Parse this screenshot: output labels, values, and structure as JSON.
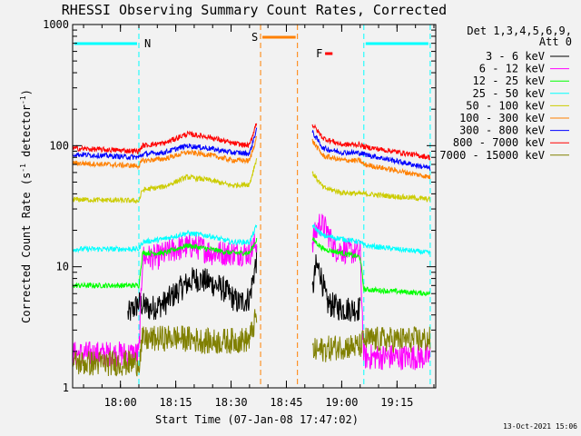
{
  "chart_data": {
    "type": "line",
    "title": "RHESSI Observing Summary Count Rates, Corrected",
    "xlabel": "Start Time (07-Jan-08 17:47:02)",
    "ylabel_main": "Corrected Count Rate (s",
    "ylabel_sup1": "-1",
    "ylabel_mid": " detector",
    "ylabel_sup2": "-1",
    "ylabel_end": ")",
    "y_scale": "log",
    "ylim": [
      1,
      1000
    ],
    "xlim": [
      "17:47:02",
      "19:25:30"
    ],
    "x_ticks": [
      "18:00",
      "18:15",
      "18:30",
      "18:45",
      "19:00",
      "19:15"
    ],
    "y_ticks": [
      "1",
      "10",
      "100",
      "1000"
    ],
    "date_stamp": "13-Oct-2021 15:06",
    "legend_header_1": "Det 1,3,4,5,6,9,",
    "legend_header_2": "Att 0",
    "legend_position": "top-right",
    "gaps": [
      [
        "18:37",
        "18:52"
      ]
    ],
    "annotations": [
      {
        "label": "N",
        "color": "#00ffff",
        "bars": [
          [
            "17:47",
            "18:05"
          ],
          [
            "19:06",
            "19:24"
          ]
        ],
        "lines": [
          "18:05",
          "19:06",
          "19:24"
        ]
      },
      {
        "label": "S",
        "color": "#ff8000",
        "bars": [
          [
            "18:38",
            "18:48"
          ]
        ],
        "lines": [
          "18:38",
          "18:48"
        ]
      },
      {
        "label": "F",
        "color": "#ff0000",
        "bars": [
          [
            "18:55",
            "18:58"
          ]
        ],
        "lines": []
      }
    ],
    "series": [
      {
        "name": "3 - 6 keV",
        "color": "#000000",
        "points": [
          [
            "18:02",
            4.0
          ],
          [
            "18:05",
            5.0
          ],
          [
            "18:08",
            4.5
          ],
          [
            "18:12",
            5.0
          ],
          [
            "18:16",
            6.5
          ],
          [
            "18:20",
            8.0
          ],
          [
            "18:24",
            7.5
          ],
          [
            "18:28",
            6.5
          ],
          [
            "18:32",
            5.0
          ],
          [
            "18:35",
            5.5
          ],
          [
            "18:37",
            12
          ],
          [
            "18:52",
            6.0
          ],
          [
            "18:53",
            10
          ],
          [
            "18:54",
            9.5
          ],
          [
            "18:56",
            5.0
          ],
          [
            "19:00",
            4.5
          ],
          [
            "19:05",
            4.5
          ]
        ]
      },
      {
        "name": "6 - 12 keV",
        "color": "#ff00ff",
        "points": [
          [
            "17:47",
            1.9
          ],
          [
            "18:05",
            1.9
          ],
          [
            "18:06",
            12
          ],
          [
            "18:10",
            12
          ],
          [
            "18:15",
            14
          ],
          [
            "18:20",
            15
          ],
          [
            "18:25",
            13
          ],
          [
            "18:30",
            13
          ],
          [
            "18:35",
            13
          ],
          [
            "18:37",
            16
          ],
          [
            "18:52",
            16
          ],
          [
            "18:54",
            23
          ],
          [
            "18:56",
            20
          ],
          [
            "18:58",
            14
          ],
          [
            "19:05",
            13
          ],
          [
            "19:06",
            1.8
          ],
          [
            "19:24",
            1.8
          ]
        ]
      },
      {
        "name": "12 - 25 keV",
        "color": "#00ff00",
        "points": [
          [
            "17:47",
            7
          ],
          [
            "18:05",
            7
          ],
          [
            "18:06",
            13
          ],
          [
            "18:12",
            13
          ],
          [
            "18:18",
            15
          ],
          [
            "18:24",
            14
          ],
          [
            "18:30",
            13
          ],
          [
            "18:35",
            13
          ],
          [
            "18:37",
            17
          ],
          [
            "18:52",
            17
          ],
          [
            "18:55",
            14
          ],
          [
            "19:00",
            13
          ],
          [
            "19:05",
            12
          ],
          [
            "19:06",
            6.5
          ],
          [
            "19:24",
            6.0
          ]
        ]
      },
      {
        "name": "25 - 50 keV",
        "color": "#00ffff",
        "points": [
          [
            "17:47",
            14
          ],
          [
            "18:05",
            14
          ],
          [
            "18:06",
            16
          ],
          [
            "18:12",
            17
          ],
          [
            "18:18",
            19
          ],
          [
            "18:24",
            18
          ],
          [
            "18:30",
            16
          ],
          [
            "18:35",
            16
          ],
          [
            "18:37",
            22
          ],
          [
            "18:52",
            22
          ],
          [
            "18:55",
            18
          ],
          [
            "19:00",
            17
          ],
          [
            "19:05",
            16
          ],
          [
            "19:06",
            15
          ],
          [
            "19:24",
            13
          ]
        ]
      },
      {
        "name": "50 - 100 keV",
        "color": "#cccc00",
        "points": [
          [
            "17:47",
            36
          ],
          [
            "18:05",
            35
          ],
          [
            "18:06",
            43
          ],
          [
            "18:12",
            46
          ],
          [
            "18:18",
            55
          ],
          [
            "18:24",
            52
          ],
          [
            "18:30",
            47
          ],
          [
            "18:35",
            48
          ],
          [
            "18:37",
            80
          ],
          [
            "18:52",
            60
          ],
          [
            "18:55",
            45
          ],
          [
            "19:00",
            41
          ],
          [
            "19:05",
            40
          ],
          [
            "19:06",
            40
          ],
          [
            "19:24",
            36
          ]
        ]
      },
      {
        "name": "100 - 300 keV",
        "color": "#ff8000",
        "points": [
          [
            "17:47",
            72
          ],
          [
            "18:05",
            68
          ],
          [
            "18:06",
            75
          ],
          [
            "18:12",
            78
          ],
          [
            "18:18",
            88
          ],
          [
            "18:24",
            84
          ],
          [
            "18:30",
            76
          ],
          [
            "18:35",
            75
          ],
          [
            "18:37",
            120
          ],
          [
            "18:52",
            110
          ],
          [
            "18:55",
            82
          ],
          [
            "19:00",
            76
          ],
          [
            "19:05",
            75
          ],
          [
            "19:06",
            70
          ],
          [
            "19:24",
            55
          ]
        ]
      },
      {
        "name": "300 - 800 keV",
        "color": "#0000ff",
        "points": [
          [
            "17:47",
            85
          ],
          [
            "18:05",
            80
          ],
          [
            "18:06",
            85
          ],
          [
            "18:12",
            88
          ],
          [
            "18:18",
            100
          ],
          [
            "18:24",
            95
          ],
          [
            "18:30",
            88
          ],
          [
            "18:35",
            86
          ],
          [
            "18:37",
            140
          ],
          [
            "18:52",
            130
          ],
          [
            "18:55",
            95
          ],
          [
            "19:00",
            88
          ],
          [
            "19:05",
            87
          ],
          [
            "19:06",
            85
          ],
          [
            "19:24",
            65
          ]
        ]
      },
      {
        "name": "800 - 7000 keV",
        "color": "#ff0000",
        "points": [
          [
            "17:47",
            95
          ],
          [
            "18:05",
            90
          ],
          [
            "18:06",
            100
          ],
          [
            "18:12",
            105
          ],
          [
            "18:18",
            125
          ],
          [
            "18:24",
            118
          ],
          [
            "18:30",
            105
          ],
          [
            "18:35",
            100
          ],
          [
            "18:37",
            160
          ],
          [
            "18:52",
            150
          ],
          [
            "18:55",
            115
          ],
          [
            "19:00",
            102
          ],
          [
            "19:05",
            102
          ],
          [
            "19:06",
            98
          ],
          [
            "19:24",
            80
          ]
        ]
      },
      {
        "name": "7000 - 15000 keV",
        "color": "#808000",
        "points": [
          [
            "17:47",
            1.6
          ],
          [
            "18:05",
            1.6
          ],
          [
            "18:06",
            2.5
          ],
          [
            "18:15",
            2.6
          ],
          [
            "18:25",
            2.4
          ],
          [
            "18:35",
            2.5
          ],
          [
            "18:37",
            4.0
          ],
          [
            "18:52",
            2.0
          ],
          [
            "19:00",
            2.2
          ],
          [
            "19:05",
            2.2
          ],
          [
            "19:06",
            2.5
          ],
          [
            "19:24",
            2.5
          ]
        ]
      }
    ]
  }
}
